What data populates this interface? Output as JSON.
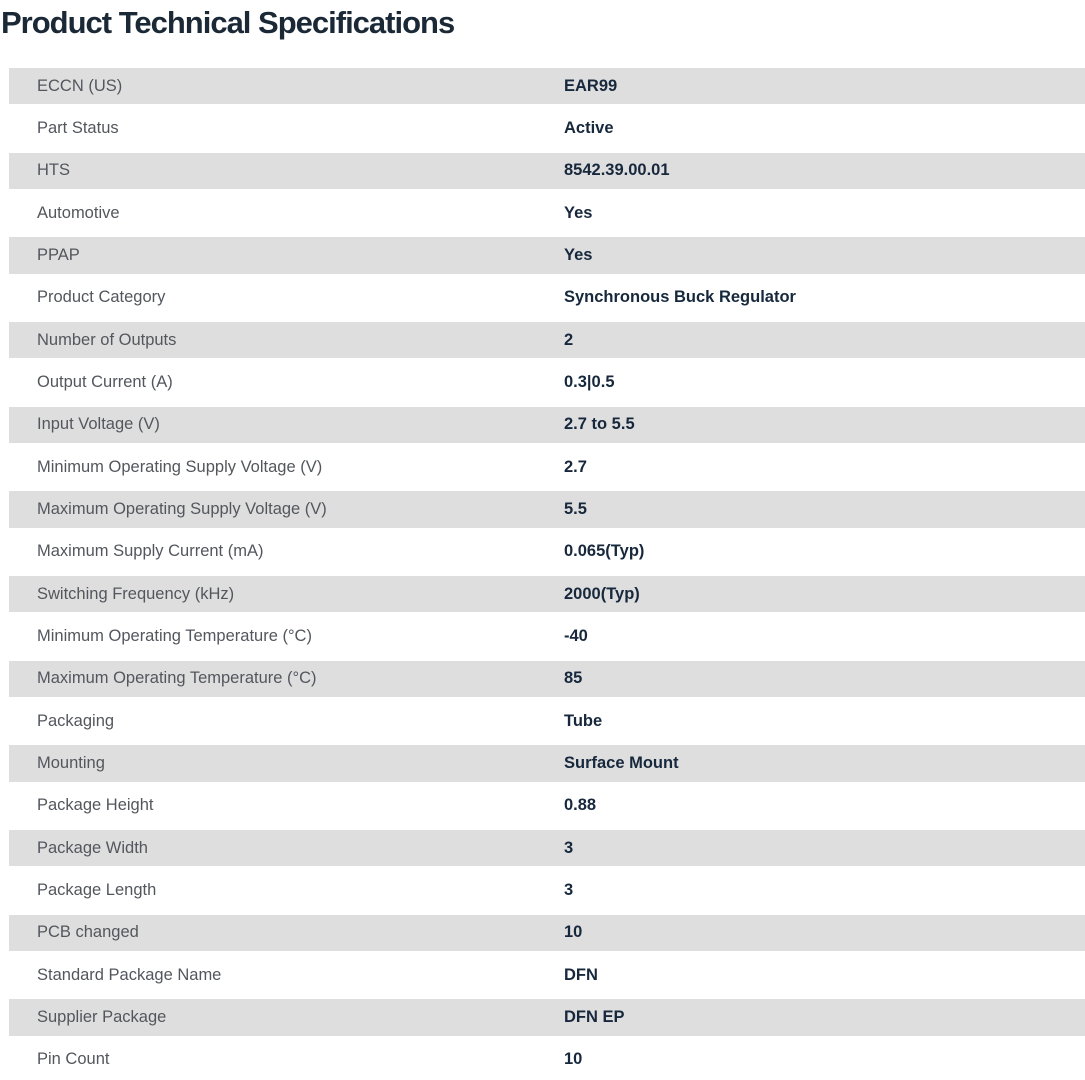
{
  "page_title": "Product Technical Specifications",
  "colors": {
    "stripe": "#dedede",
    "label": "#53575d",
    "value": "#17283d",
    "title": "#1b2937"
  },
  "table": {
    "rows": [
      {
        "label": "ECCN (US)",
        "value": "EAR99"
      },
      {
        "label": "Part Status",
        "value": "Active"
      },
      {
        "label": "HTS",
        "value": "8542.39.00.01"
      },
      {
        "label": "Automotive",
        "value": "Yes"
      },
      {
        "label": "PPAP",
        "value": "Yes"
      },
      {
        "label": "Product Category",
        "value": "Synchronous Buck Regulator"
      },
      {
        "label": "Number of Outputs",
        "value": "2"
      },
      {
        "label": "Output Current (A)",
        "value": "0.3|0.5"
      },
      {
        "label": "Input Voltage (V)",
        "value": "2.7 to 5.5"
      },
      {
        "label": "Minimum Operating Supply Voltage (V)",
        "value": "2.7"
      },
      {
        "label": "Maximum Operating Supply Voltage (V)",
        "value": "5.5"
      },
      {
        "label": "Maximum Supply Current (mA)",
        "value": "0.065(Typ)"
      },
      {
        "label": "Switching Frequency (kHz)",
        "value": "2000(Typ)"
      },
      {
        "label": "Minimum Operating Temperature (°C)",
        "value": "-40"
      },
      {
        "label": "Maximum Operating Temperature (°C)",
        "value": "85"
      },
      {
        "label": "Packaging",
        "value": "Tube"
      },
      {
        "label": "Mounting",
        "value": "Surface Mount"
      },
      {
        "label": "Package Height",
        "value": "0.88"
      },
      {
        "label": "Package Width",
        "value": "3"
      },
      {
        "label": "Package Length",
        "value": "3"
      },
      {
        "label": "PCB changed",
        "value": "10"
      },
      {
        "label": "Standard Package Name",
        "value": "DFN"
      },
      {
        "label": "Supplier Package",
        "value": "DFN EP"
      },
      {
        "label": "Pin Count",
        "value": "10"
      }
    ]
  }
}
